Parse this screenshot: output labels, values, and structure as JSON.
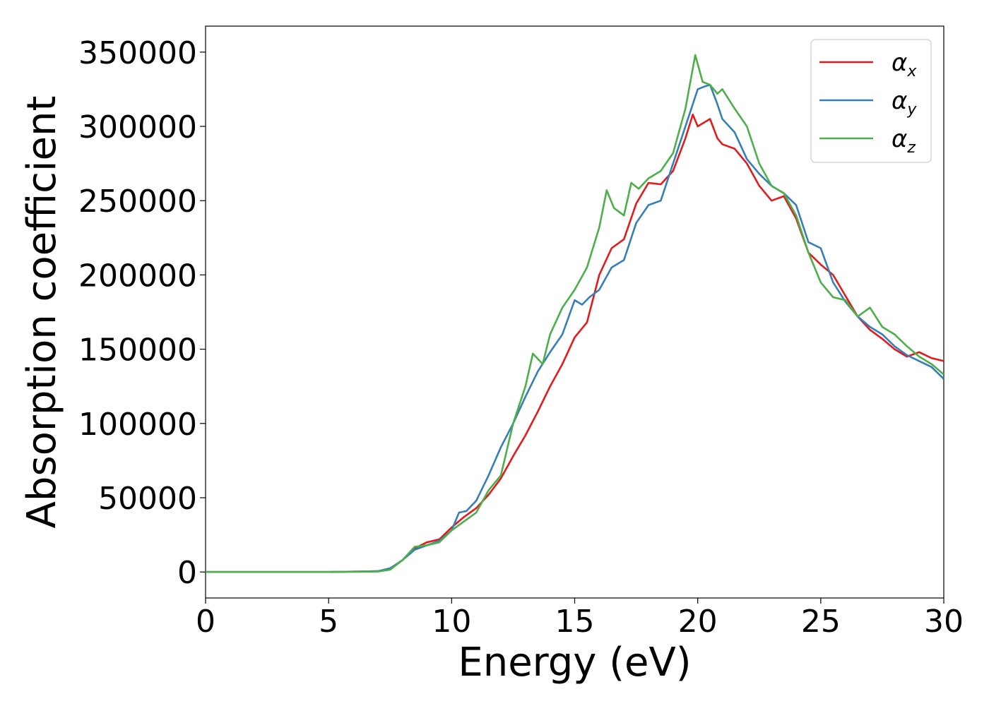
{
  "chart_data": {
    "type": "line",
    "xlabel": "Energy (eV)",
    "ylabel": "Absorption coefficient",
    "xlim": [
      0,
      30
    ],
    "ylim": [
      -17500,
      367500
    ],
    "xticks": [
      0,
      5,
      10,
      15,
      20,
      25,
      30
    ],
    "yticks": [
      0,
      50000,
      100000,
      150000,
      200000,
      250000,
      300000,
      350000
    ],
    "grid": false,
    "legend_position": "top-right",
    "series": [
      {
        "name": "αx",
        "legend_base": "α",
        "legend_sub": "x",
        "color": "#e41a1c",
        "x": [
          0,
          5,
          7,
          7.5,
          8,
          8.5,
          9,
          9.5,
          10,
          10.5,
          11,
          11.5,
          12,
          12.5,
          13,
          13.5,
          14,
          14.5,
          15,
          15.5,
          16,
          16.5,
          17,
          17.5,
          18,
          18.5,
          19,
          19.5,
          19.8,
          20,
          20.3,
          20.5,
          20.8,
          21,
          21.5,
          22,
          22.5,
          23,
          23.5,
          24,
          24.5,
          25,
          25.5,
          26,
          26.5,
          27,
          27.5,
          28,
          28.5,
          29,
          29.5,
          30
        ],
        "y": [
          0,
          0,
          500,
          2000,
          8000,
          16000,
          20000,
          22000,
          30000,
          37000,
          43000,
          52000,
          63000,
          78000,
          92000,
          108000,
          125000,
          140000,
          158000,
          168000,
          200000,
          218000,
          224000,
          248000,
          262000,
          261000,
          270000,
          292000,
          308000,
          300000,
          303000,
          305000,
          292000,
          288000,
          285000,
          275000,
          260000,
          250000,
          253000,
          238000,
          215000,
          207000,
          200000,
          186000,
          172000,
          163000,
          157000,
          150000,
          145000,
          148000,
          144000,
          142000
        ]
      },
      {
        "name": "αy",
        "legend_base": "α",
        "legend_sub": "y",
        "color": "#377eb8",
        "x": [
          0,
          5,
          7,
          7.5,
          8,
          8.5,
          9,
          9.5,
          10,
          10.3,
          10.6,
          11,
          11.5,
          12,
          12.5,
          13,
          13.5,
          14,
          14.5,
          15,
          15.3,
          15.6,
          16,
          16.5,
          17,
          17.5,
          18,
          18.5,
          19,
          19.5,
          20,
          20.3,
          20.5,
          20.8,
          21,
          21.5,
          22,
          22.5,
          23,
          23.5,
          24,
          24.5,
          25,
          25.5,
          26,
          26.5,
          27,
          27.5,
          28,
          28.5,
          29,
          29.5,
          30
        ],
        "y": [
          0,
          0,
          500,
          2500,
          8000,
          15000,
          18000,
          21000,
          28000,
          40000,
          41000,
          48000,
          65000,
          84000,
          100000,
          118000,
          135000,
          148000,
          160000,
          183000,
          180000,
          185000,
          190000,
          205000,
          210000,
          235000,
          247000,
          250000,
          275000,
          300000,
          325000,
          327000,
          328000,
          315000,
          305000,
          296000,
          278000,
          268000,
          260000,
          255000,
          247000,
          222000,
          218000,
          195000,
          182000,
          172000,
          165000,
          160000,
          152000,
          146000,
          142000,
          138000,
          130000
        ]
      },
      {
        "name": "αz",
        "legend_base": "α",
        "legend_sub": "z",
        "color": "#4daf4a",
        "x": [
          0,
          5,
          7,
          7.5,
          8,
          8.5,
          9,
          9.5,
          10,
          10.5,
          11,
          11.5,
          12,
          12.5,
          13,
          13.3,
          13.7,
          14,
          14.5,
          15,
          15.5,
          16,
          16.3,
          16.6,
          17,
          17.3,
          17.6,
          18,
          18.5,
          19,
          19.5,
          19.9,
          20.2,
          20.5,
          20.8,
          21,
          21.5,
          22,
          22.5,
          23,
          23.5,
          24,
          24.5,
          25,
          25.5,
          26,
          26.5,
          27,
          27.5,
          28,
          28.5,
          29,
          29.5,
          30
        ],
        "y": [
          0,
          0,
          300,
          1500,
          8000,
          17000,
          18000,
          20000,
          28000,
          34000,
          40000,
          55000,
          65000,
          100000,
          125000,
          147000,
          140000,
          160000,
          178000,
          190000,
          205000,
          232000,
          257000,
          245000,
          240000,
          262000,
          258000,
          265000,
          270000,
          282000,
          312000,
          348000,
          330000,
          328000,
          322000,
          325000,
          312000,
          300000,
          275000,
          260000,
          255000,
          240000,
          215000,
          195000,
          185000,
          183000,
          172000,
          178000,
          165000,
          160000,
          152000,
          145000,
          140000,
          133000
        ]
      }
    ]
  }
}
